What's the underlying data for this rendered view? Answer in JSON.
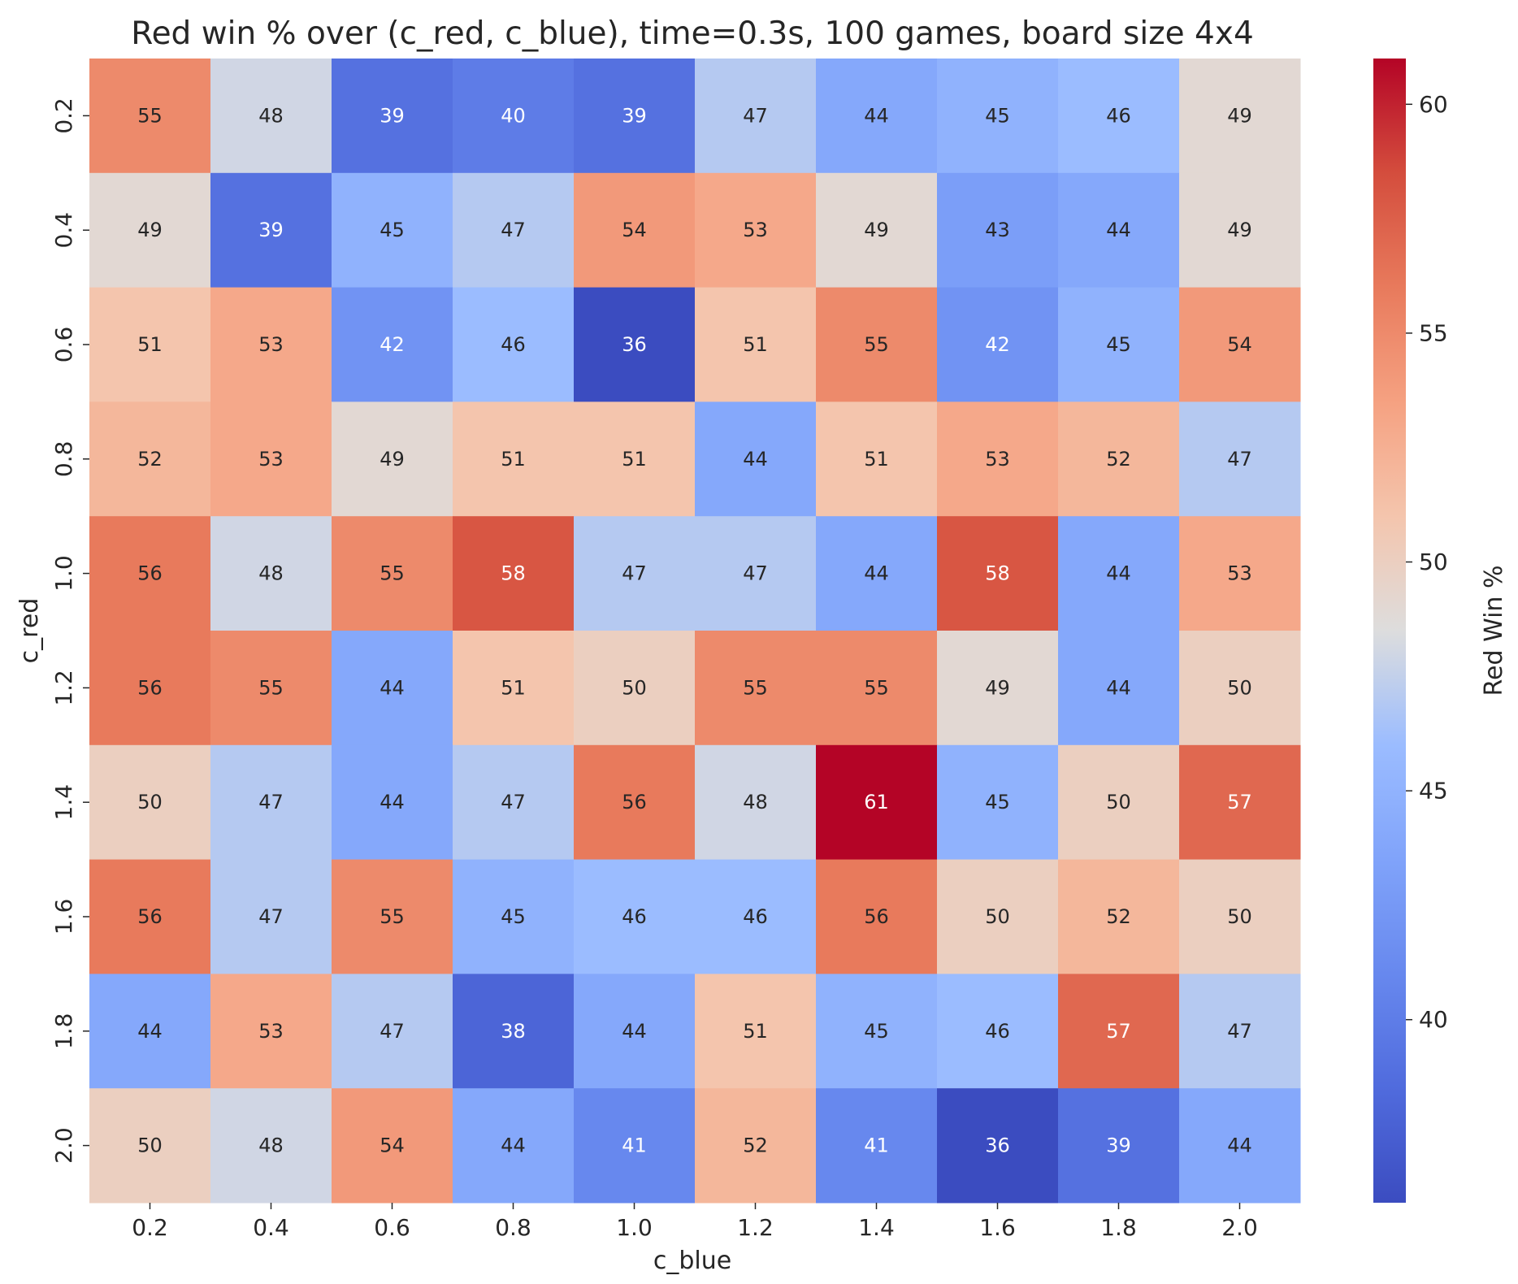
{
  "chart_data": {
    "type": "heatmap",
    "title": "Red win % over (c_red, c_blue), time=0.3s, 100 games, board size 4x4",
    "xlabel": "c_blue",
    "ylabel": "c_red",
    "x_categories": [
      "0.2",
      "0.4",
      "0.6",
      "0.8",
      "1.0",
      "1.2",
      "1.4",
      "1.6",
      "1.8",
      "2.0"
    ],
    "y_categories": [
      "0.2",
      "0.4",
      "0.6",
      "0.8",
      "1.0",
      "1.2",
      "1.4",
      "1.6",
      "1.8",
      "2.0"
    ],
    "values": [
      [
        55,
        48,
        39,
        40,
        39,
        47,
        44,
        45,
        46,
        49
      ],
      [
        49,
        39,
        45,
        47,
        54,
        53,
        49,
        43,
        44,
        49
      ],
      [
        51,
        53,
        42,
        46,
        36,
        51,
        55,
        42,
        45,
        54
      ],
      [
        52,
        53,
        49,
        51,
        51,
        44,
        51,
        53,
        52,
        47
      ],
      [
        56,
        48,
        55,
        58,
        47,
        47,
        44,
        58,
        44,
        53
      ],
      [
        56,
        55,
        44,
        51,
        50,
        55,
        55,
        49,
        44,
        50
      ],
      [
        50,
        47,
        44,
        47,
        56,
        48,
        61,
        45,
        50,
        57
      ],
      [
        56,
        47,
        55,
        45,
        46,
        46,
        56,
        50,
        52,
        50
      ],
      [
        44,
        53,
        47,
        38,
        44,
        51,
        45,
        46,
        57,
        47
      ],
      [
        50,
        48,
        54,
        44,
        41,
        52,
        41,
        36,
        39,
        44
      ]
    ],
    "colormap": "coolwarm",
    "vmin": 36,
    "vmax": 61,
    "colorbar": {
      "label": "Red Win %",
      "ticks": [
        40,
        45,
        50,
        55,
        60
      ]
    },
    "annotations": true,
    "grid": false
  }
}
